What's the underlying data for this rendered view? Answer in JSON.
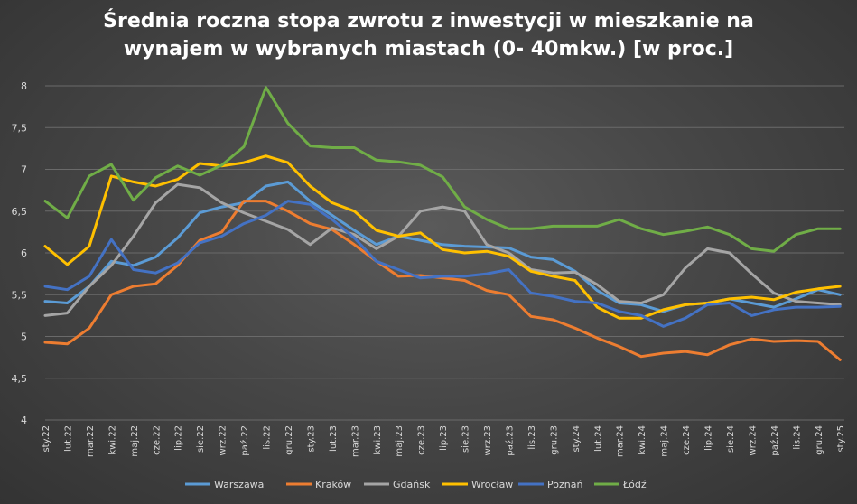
{
  "chart_data": {
    "type": "line",
    "title_lines": [
      "Średnia roczna stopa zwrotu z inwestycji w mieszkanie na",
      "wynajem w wybranych miastach (0- 40mkw.) [w proc.]"
    ],
    "xlabel": "",
    "ylabel": "",
    "ylim": [
      4,
      8
    ],
    "yticks": [
      "4",
      "4,5",
      "5",
      "5,5",
      "6",
      "6,5",
      "7",
      "7,5",
      "8"
    ],
    "ytick_values": [
      4,
      4.5,
      5,
      5.5,
      6,
      6.5,
      7,
      7.5,
      8
    ],
    "grid": true,
    "legend_position": "bottom",
    "categories": [
      "sty.22",
      "lut.22",
      "mar.22",
      "kwi.22",
      "maj.22",
      "cze.22",
      "lip.22",
      "sie.22",
      "wrz.22",
      "paź.22",
      "lis.22",
      "gru.22",
      "sty.23",
      "lut.23",
      "mar.23",
      "kwi.23",
      "maj.23",
      "cze.23",
      "lip.23",
      "sie.23",
      "wrz.23",
      "paź.23",
      "lis.23",
      "gru.23",
      "sty.24",
      "lut.24",
      "mar.24",
      "kwi.24",
      "maj.24",
      "cze.24",
      "lip.24",
      "sie.24",
      "wrz.24",
      "paź.24",
      "lis.24",
      "gru.24",
      "sty.25"
    ],
    "series": [
      {
        "name": "Warszawa",
        "color": "#5b9bd5",
        "values": [
          5.42,
          5.4,
          5.6,
          5.9,
          5.85,
          5.95,
          6.18,
          6.48,
          6.55,
          6.6,
          6.8,
          6.85,
          6.62,
          6.45,
          6.27,
          6.1,
          6.2,
          6.15,
          6.1,
          6.08,
          6.07,
          6.06,
          5.95,
          5.92,
          5.78,
          5.55,
          5.4,
          5.38,
          5.3,
          5.38,
          5.4,
          5.45,
          5.4,
          5.35,
          5.45,
          5.56,
          5.5
        ]
      },
      {
        "name": "Kraków",
        "color": "#ed7d31",
        "values": [
          4.93,
          4.91,
          5.1,
          5.5,
          5.6,
          5.63,
          5.85,
          6.15,
          6.25,
          6.62,
          6.62,
          6.5,
          6.35,
          6.28,
          6.1,
          5.9,
          5.72,
          5.73,
          5.7,
          5.67,
          5.55,
          5.5,
          5.24,
          5.2,
          5.1,
          4.98,
          4.88,
          4.76,
          4.8,
          4.82,
          4.78,
          4.9,
          4.97,
          4.94,
          4.95,
          4.94,
          4.72
        ]
      },
      {
        "name": "Gdańsk",
        "color": "#a5a5a5",
        "values": [
          5.25,
          5.28,
          5.6,
          5.85,
          6.2,
          6.6,
          6.82,
          6.78,
          6.6,
          6.48,
          6.38,
          6.28,
          6.1,
          6.3,
          6.22,
          6.05,
          6.2,
          6.5,
          6.55,
          6.5,
          6.1,
          6.0,
          5.8,
          5.76,
          5.77,
          5.62,
          5.42,
          5.4,
          5.5,
          5.82,
          6.05,
          6.0,
          5.75,
          5.52,
          5.42,
          5.4,
          5.38
        ]
      },
      {
        "name": "Wrocław",
        "color": "#ffc000",
        "values": [
          6.08,
          5.86,
          6.08,
          6.92,
          6.85,
          6.8,
          6.88,
          7.07,
          7.04,
          7.08,
          7.16,
          7.08,
          6.8,
          6.6,
          6.5,
          6.27,
          6.2,
          6.24,
          6.04,
          6.0,
          6.02,
          5.96,
          5.78,
          5.72,
          5.67,
          5.35,
          5.22,
          5.22,
          5.32,
          5.38,
          5.4,
          5.45,
          5.47,
          5.44,
          5.53,
          5.57,
          5.6
        ]
      },
      {
        "name": "Poznań",
        "color": "#4472c4",
        "values": [
          5.6,
          5.56,
          5.72,
          6.16,
          5.8,
          5.76,
          5.88,
          6.12,
          6.2,
          6.35,
          6.45,
          6.62,
          6.58,
          6.4,
          6.18,
          5.9,
          5.8,
          5.7,
          5.72,
          5.72,
          5.75,
          5.8,
          5.52,
          5.48,
          5.42,
          5.4,
          5.3,
          5.25,
          5.12,
          5.22,
          5.38,
          5.4,
          5.25,
          5.32,
          5.35,
          5.35,
          5.36
        ]
      },
      {
        "name": "Łódź",
        "color": "#70ad47",
        "values": [
          6.62,
          6.42,
          6.92,
          7.06,
          6.63,
          6.9,
          7.04,
          6.93,
          7.05,
          7.27,
          7.98,
          7.55,
          7.28,
          7.26,
          7.26,
          7.11,
          7.09,
          7.05,
          6.91,
          6.55,
          6.4,
          6.29,
          6.29,
          6.32,
          6.32,
          6.32,
          6.4,
          6.29,
          6.22,
          6.26,
          6.31,
          6.22,
          6.05,
          6.02,
          6.22,
          6.29,
          6.29
        ]
      }
    ]
  }
}
